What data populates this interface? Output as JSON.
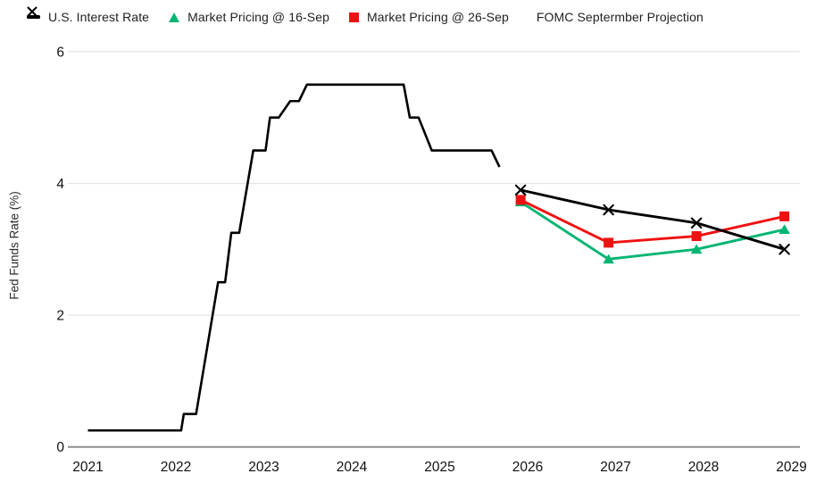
{
  "legend": {
    "items": [
      {
        "label": "U.S. Interest Rate",
        "marker": "dash",
        "color": "#000000"
      },
      {
        "label": "Market Pricing @ 16-Sep",
        "marker": "triangle",
        "color": "#00B572"
      },
      {
        "label": "Market Pricing @ 26-Sep",
        "marker": "square",
        "color": "#EE1111"
      },
      {
        "label": "FOMC Septermber Projection",
        "marker": "x",
        "color": "#000000"
      }
    ]
  },
  "axes": {
    "ylabel": "Fed Funds Rate (%)"
  },
  "colors": {
    "history_line": "#000000",
    "market_16sep": "#00B572",
    "market_26sep": "#EE1111",
    "fomc_projection": "#000000",
    "gridline": "#e4e4e4",
    "axis_line": "#8f8f8f",
    "tick_text": "#111111",
    "background": "#ffffff"
  },
  "chart_data": {
    "type": "line",
    "title": "",
    "xlabel": "",
    "ylabel": "Fed Funds Rate (%)",
    "x_ticks": [
      2021,
      2022,
      2023,
      2024,
      2025,
      2026,
      2027,
      2028,
      2029
    ],
    "y_ticks": [
      0,
      2,
      4,
      6
    ],
    "xlim": [
      2021,
      2029.2
    ],
    "ylim": [
      0,
      6
    ],
    "grid": true,
    "legend_position": "top-left",
    "series": [
      {
        "name": "U.S. Interest Rate",
        "color": "#000000",
        "marker": "none",
        "points": [
          [
            2021.0,
            0.25
          ],
          [
            2022.06,
            0.25
          ],
          [
            2022.09,
            0.5
          ],
          [
            2022.23,
            0.5
          ],
          [
            2022.48,
            2.5
          ],
          [
            2022.56,
            2.5
          ],
          [
            2022.63,
            3.25
          ],
          [
            2022.72,
            3.25
          ],
          [
            2022.88,
            4.5
          ],
          [
            2023.02,
            4.5
          ],
          [
            2023.07,
            5.0
          ],
          [
            2023.17,
            5.0
          ],
          [
            2023.3,
            5.25
          ],
          [
            2023.4,
            5.25
          ],
          [
            2023.49,
            5.5
          ],
          [
            2024.59,
            5.5
          ],
          [
            2024.66,
            5.0
          ],
          [
            2024.76,
            5.0
          ],
          [
            2024.91,
            4.5
          ],
          [
            2025.59,
            4.5
          ],
          [
            2025.68,
            4.25
          ]
        ]
      },
      {
        "name": "Market Pricing @ 16-Sep",
        "color": "#00B572",
        "marker": "triangle",
        "points": [
          [
            2025.92,
            3.72
          ],
          [
            2026.92,
            2.85
          ],
          [
            2027.92,
            3.0
          ],
          [
            2028.92,
            3.3
          ]
        ]
      },
      {
        "name": "Market Pricing @ 26-Sep",
        "color": "#EE1111",
        "marker": "square",
        "points": [
          [
            2025.92,
            3.75
          ],
          [
            2026.92,
            3.1
          ],
          [
            2027.92,
            3.2
          ],
          [
            2028.92,
            3.5
          ]
        ]
      },
      {
        "name": "FOMC Septermber Projection",
        "color": "#000000",
        "marker": "x",
        "points": [
          [
            2025.92,
            3.9
          ],
          [
            2026.92,
            3.6
          ],
          [
            2027.92,
            3.4
          ],
          [
            2028.92,
            3.0
          ]
        ]
      }
    ]
  }
}
